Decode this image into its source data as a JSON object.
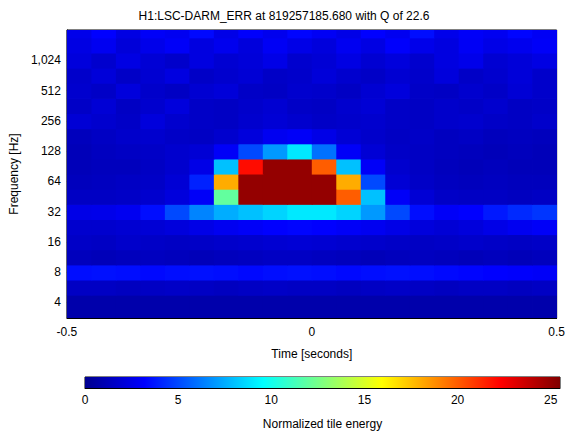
{
  "chart_data": {
    "type": "heatmap",
    "title": "H1:LSC-DARM_ERR at 819257185.680 with Q of 22.6",
    "x_label": "Time [seconds]",
    "y_label": "Frequency [Hz]",
    "xlim": [
      -0.5,
      0.5
    ],
    "xticks": [
      -0.5,
      0,
      0.5
    ],
    "ylim": [
      2.8,
      2048
    ],
    "yticks": [
      4,
      8,
      16,
      32,
      64,
      128,
      256,
      512,
      1024
    ],
    "log": "y",
    "grid": false,
    "x_edges": [
      -0.5,
      -0.45,
      -0.4,
      -0.35,
      -0.3,
      -0.25,
      -0.2,
      -0.15,
      -0.1,
      -0.05,
      0,
      0.05,
      0.1,
      0.15,
      0.2,
      0.25,
      0.3,
      0.35,
      0.4,
      0.45,
      0.5
    ],
    "y_edges": [
      2.8,
      4.76,
      6.73,
      9.51,
      13.45,
      19.03,
      26.91,
      38.05,
      53.82,
      76.11,
      107.63,
      152.22,
      215.27,
      304.44,
      430.54,
      608.87,
      861.08,
      1217.75,
      1722.16,
      2048
    ],
    "cells": [
      [
        0.8,
        0.8,
        0.8,
        0.8,
        0.8,
        0.8,
        0.8,
        0.8,
        0.8,
        0.8,
        0.8,
        0.8,
        0.8,
        0.8,
        0.8,
        0.8,
        0.8,
        0.8,
        0.8,
        0.8
      ],
      [
        1.5,
        1.5,
        1.4,
        1.5,
        1.6,
        1.5,
        1.4,
        1.5,
        1.6,
        1.5,
        1.5,
        1.4,
        1.5,
        1.6,
        1.5,
        1.4,
        1.5,
        1.5,
        1.4,
        1.5
      ],
      [
        3.5,
        3.6,
        3.5,
        3.4,
        3.5,
        3.6,
        3.5,
        3.4,
        3.5,
        3.6,
        3.5,
        3.4,
        3.5,
        3.6,
        3.5,
        3.4,
        3.3,
        3.2,
        3.1,
        3.0
      ],
      [
        1.3,
        1.2,
        1.3,
        1.4,
        1.3,
        1.2,
        1.3,
        1.4,
        1.5,
        1.5,
        1.4,
        1.3,
        1.2,
        1.3,
        1.4,
        1.3,
        1.2,
        1.3,
        1.2,
        1.3
      ],
      [
        1.6,
        1.5,
        1.7,
        1.6,
        1.5,
        1.6,
        1.7,
        1.8,
        1.9,
        2.0,
        1.9,
        1.8,
        1.7,
        1.6,
        1.5,
        1.6,
        1.7,
        1.6,
        1.5,
        1.6
      ],
      [
        1.8,
        1.8,
        1.9,
        2.0,
        2.2,
        2.5,
        2.8,
        3.0,
        3.2,
        3.3,
        3.2,
        3.0,
        2.8,
        2.5,
        2.2,
        2.0,
        2.2,
        2.5,
        2.8,
        3.0
      ],
      [
        2.5,
        2.6,
        2.8,
        3.5,
        5,
        6.5,
        7.5,
        8,
        8.5,
        9,
        9,
        8.5,
        7,
        5,
        3.5,
        3,
        3.2,
        3.8,
        4.2,
        4.5
      ],
      [
        1.5,
        1.5,
        1.6,
        1.8,
        2.2,
        3,
        12,
        25,
        25,
        25,
        25,
        20,
        8,
        3,
        2,
        1.6,
        1.5,
        1.5,
        1.4,
        1.5
      ],
      [
        1.3,
        1.4,
        1.5,
        1.6,
        2,
        4,
        18,
        25,
        25,
        25,
        25,
        18,
        5,
        2,
        1.6,
        1.4,
        1.3,
        1.4,
        1.3,
        1.3
      ],
      [
        1.2,
        1.3,
        1.3,
        1.5,
        1.8,
        2.5,
        8,
        22,
        25,
        25,
        20,
        8,
        3,
        1.8,
        1.5,
        1.3,
        1.2,
        1.3,
        1.2,
        1.2
      ],
      [
        1.2,
        1.4,
        1.5,
        1.6,
        1.8,
        2,
        3,
        5,
        7,
        9,
        6,
        3,
        2,
        1.6,
        1.5,
        1.4,
        1.3,
        1.2,
        1.3,
        1.2
      ],
      [
        1.3,
        1.5,
        1.7,
        1.8,
        1.6,
        1.5,
        1.8,
        2.2,
        2.8,
        3,
        2.5,
        2,
        1.7,
        1.5,
        1.6,
        1.4,
        1.5,
        1.3,
        1.4,
        1.3
      ],
      [
        2,
        1.8,
        1.6,
        2.2,
        1.8,
        1.6,
        1.5,
        1.8,
        2,
        1.8,
        1.6,
        1.7,
        1.8,
        1.6,
        1.5,
        1.7,
        1.8,
        1.6,
        1.5,
        1.7
      ],
      [
        1.6,
        2,
        1.5,
        1.8,
        2.2,
        1.6,
        1.5,
        1.7,
        1.9,
        1.6,
        1.5,
        1.8,
        2,
        1.6,
        1.5,
        1.7,
        1.6,
        1.8,
        1.5,
        1.6
      ],
      [
        1.8,
        1.6,
        2.2,
        1.7,
        1.5,
        1.9,
        2.1,
        1.6,
        1.5,
        1.8,
        1.7,
        1.5,
        1.9,
        2.2,
        1.6,
        1.5,
        1.8,
        1.6,
        2,
        1.7
      ],
      [
        1.7,
        2.1,
        1.6,
        1.9,
        2.3,
        1.6,
        1.8,
        2,
        1.6,
        1.7,
        2.1,
        1.8,
        1.6,
        1.9,
        1.7,
        2.2,
        1.6,
        1.8,
        2.1,
        1.7
      ],
      [
        2.2,
        1.8,
        2.4,
        2,
        1.7,
        2.3,
        1.9,
        2.1,
        2.5,
        1.8,
        2,
        2.4,
        1.9,
        2.2,
        1.8,
        2.3,
        2.6,
        1.9,
        2.1,
        2.4
      ],
      [
        2.4,
        2.8,
        2.1,
        2.6,
        3,
        2.3,
        2.7,
        2.2,
        2.9,
        2.5,
        2.2,
        2.8,
        2.4,
        3.1,
        2.6,
        2.3,
        2.9,
        2.5,
        2.7,
        3
      ],
      [
        2.6,
        3.2,
        2.4,
        3,
        2.8,
        3.4,
        2.5,
        3.1,
        2.7,
        3.3,
        2.9,
        2.5,
        3.2,
        2.8,
        3.5,
        2.6,
        3,
        2.8,
        3.3,
        2.9
      ]
    ],
    "colorbar": {
      "label": "Normalized tile energy",
      "range": [
        0,
        25.5
      ],
      "ticks": [
        0,
        5,
        10,
        15,
        20,
        25
      ]
    }
  }
}
